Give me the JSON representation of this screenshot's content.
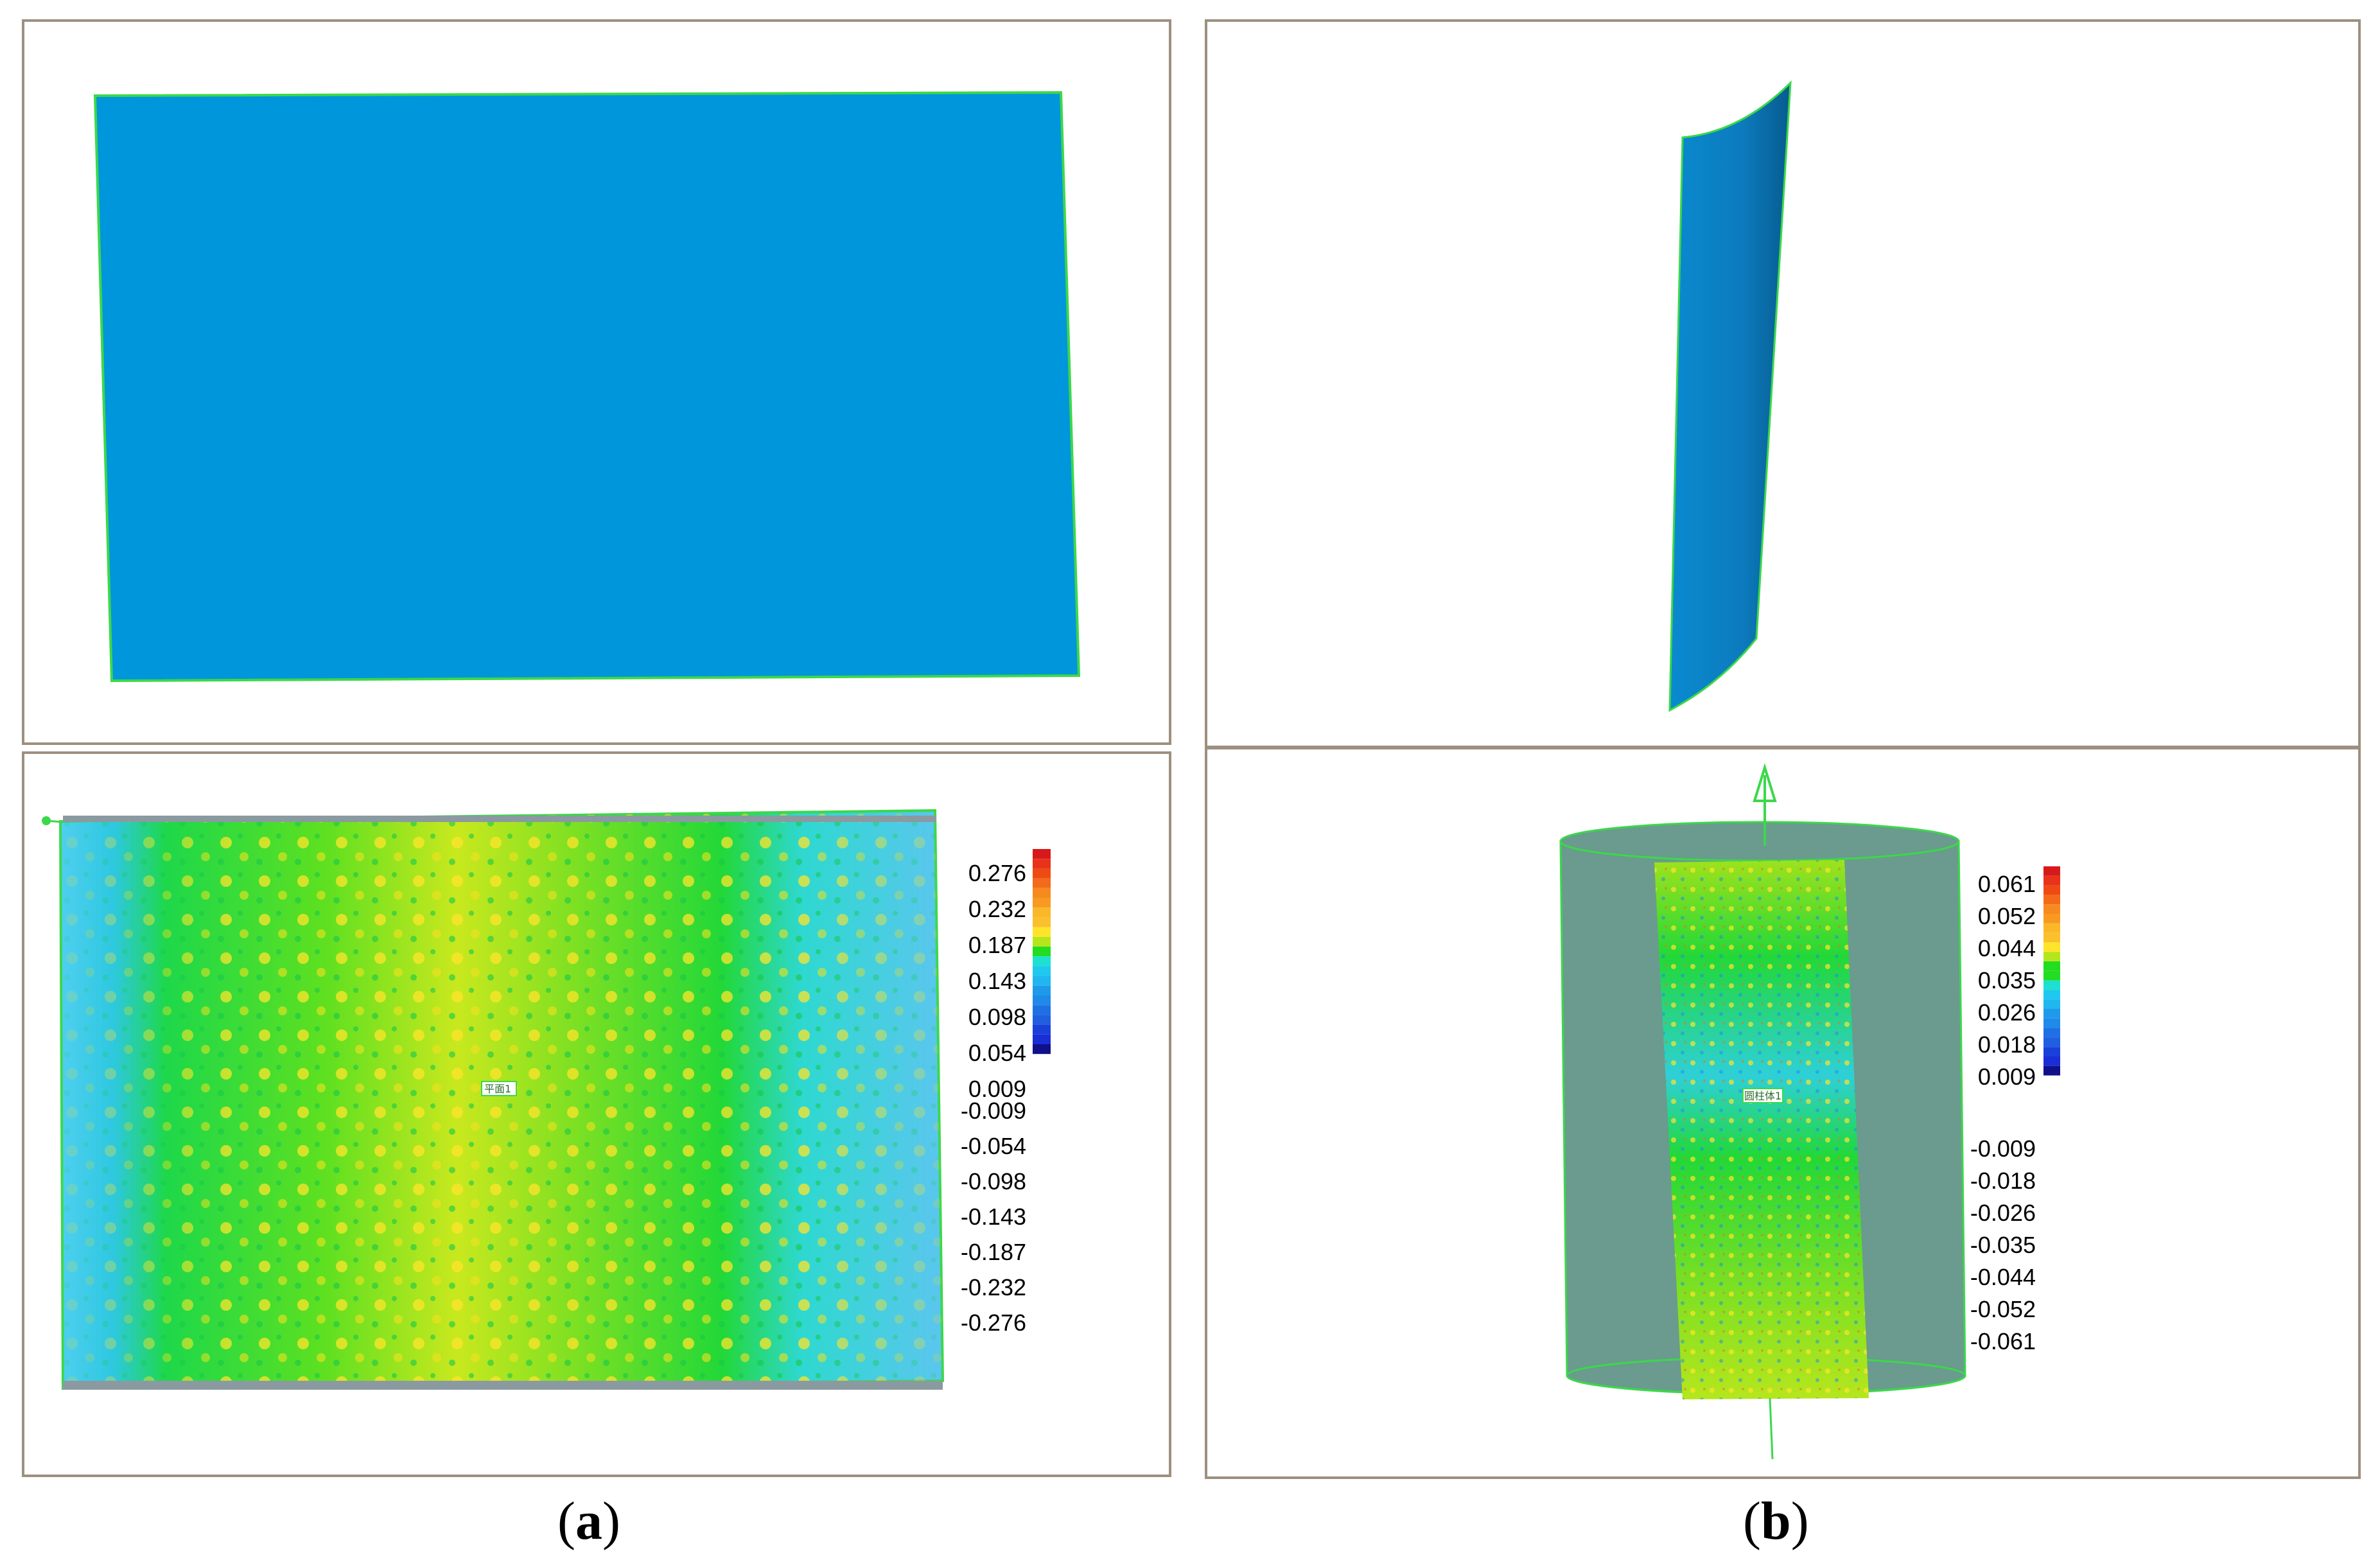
{
  "panels": {
    "a_top": {
      "surface_color": "#0096db",
      "edge_color": "#3cd84a"
    },
    "a_bottom": {
      "tag_label": "平面1",
      "legend": {
        "labels": [
          "0.276",
          "0.232",
          "0.187",
          "0.143",
          "0.098",
          "0.054",
          "0.009",
          "-0.009",
          "-0.054",
          "-0.098",
          "-0.143",
          "-0.187",
          "-0.232",
          "-0.276"
        ],
        "colors": [
          "#d7191c",
          "#f03a12",
          "#f36b1a",
          "#f89a22",
          "#fbc02d",
          "#ffe42a",
          "#b5e61d",
          "#22dd22",
          "#1ee0d0",
          "#20b6ef",
          "#1f8ae8",
          "#1f5fe0",
          "#1a2ed6",
          "#10108a"
        ]
      }
    },
    "b_top": {
      "surface_color": "#0a7fc0",
      "edge_color": "#3cd84a"
    },
    "b_bottom": {
      "tag_label": "圆柱体1",
      "legend": {
        "labels": [
          "0.061",
          "0.052",
          "0.044",
          "0.035",
          "0.026",
          "0.018",
          "0.009",
          "-0.009",
          "-0.018",
          "-0.026",
          "-0.035",
          "-0.044",
          "-0.052",
          "-0.061"
        ]
      },
      "cylinder_color": "#6a9b8e"
    }
  },
  "captions": {
    "a": "a",
    "b": "b"
  }
}
